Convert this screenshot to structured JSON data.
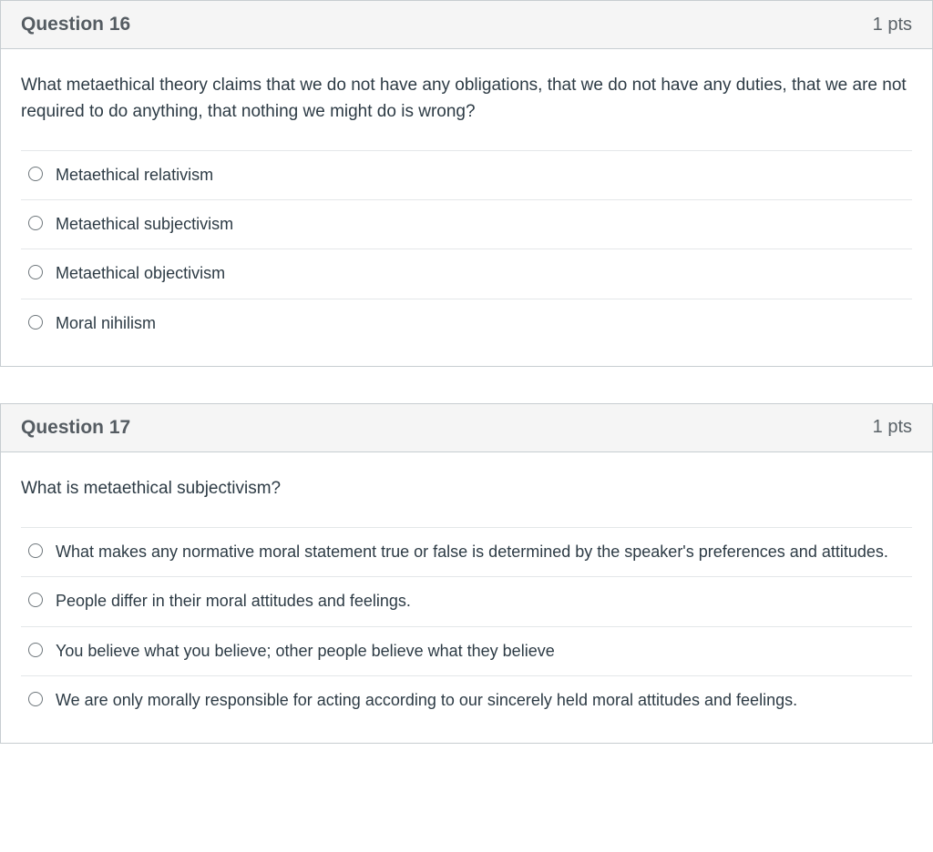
{
  "colors": {
    "text_primary": "#2d3b45",
    "text_header": "#555c62",
    "header_bg": "#f5f5f5",
    "border_strong": "#c7cdd1",
    "border_light": "#e4e7e9",
    "radio_border": "#6f777c",
    "card_bg": "#ffffff"
  },
  "typography": {
    "title_fontsize": 21,
    "title_weight": 700,
    "points_fontsize": 20,
    "prompt_fontsize": 19,
    "option_fontsize": 18,
    "font_family": "Helvetica Neue, Helvetica, Arial, sans-serif"
  },
  "questions": [
    {
      "title": "Question 16",
      "points": "1 pts",
      "prompt": "What metaethical theory claims that we do not have any obligations, that we do not have any duties, that we are not required to do anything, that nothing we might do is wrong?",
      "options": [
        "Metaethical relativism",
        "Metaethical subjectivism",
        "Metaethical objectivism",
        "Moral nihilism"
      ]
    },
    {
      "title": "Question 17",
      "points": "1 pts",
      "prompt": "What is metaethical subjectivism?",
      "options": [
        "What makes any normative moral statement true or false is determined by the speaker's preferences and attitudes.",
        "People differ in their moral attitudes and feelings.",
        "You believe what you believe; other people believe what they believe",
        "We are only morally responsible for acting according to our sincerely held moral attitudes and feelings."
      ]
    }
  ]
}
